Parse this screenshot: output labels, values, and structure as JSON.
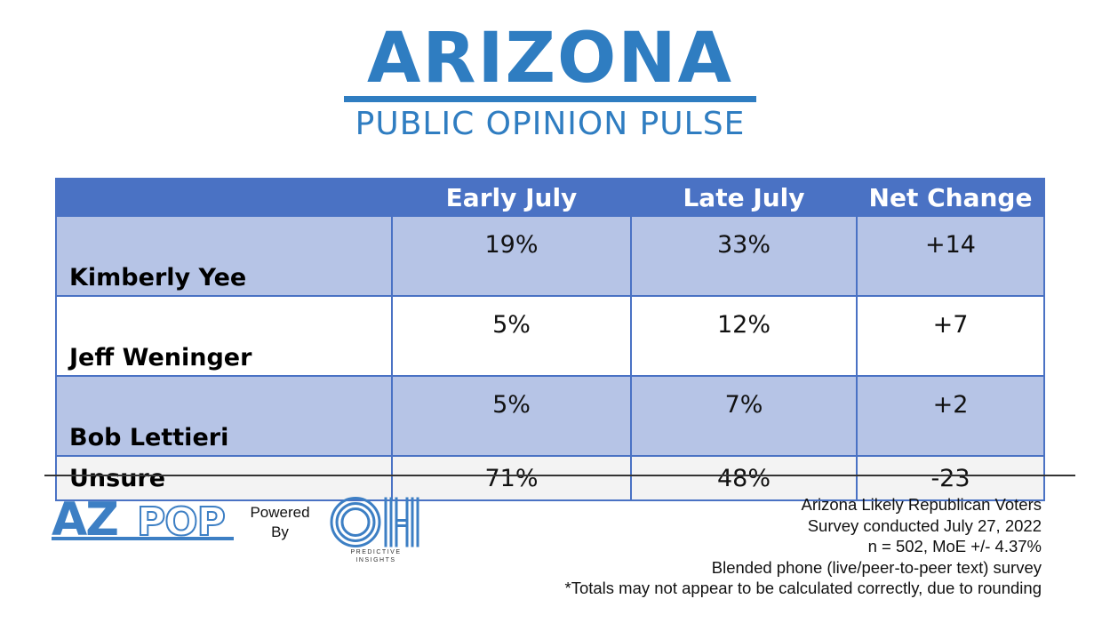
{
  "brand": {
    "title": "Arizona",
    "subtitle": "PUBLIC OPINION PULSE",
    "color": "#2f7dc1"
  },
  "chart_data": {
    "type": "table",
    "columns": [
      "",
      "Early July",
      "Late July",
      "Net Change"
    ],
    "rows": [
      {
        "name": "Kimberly Yee",
        "early": "19%",
        "late": "33%",
        "change": "+14"
      },
      {
        "name": "Jeff Weninger",
        "early": "5%",
        "late": "12%",
        "change": "+7"
      },
      {
        "name": "Bob Lettieri",
        "early": "5%",
        "late": "7%",
        "change": "+2"
      },
      {
        "name": "Unsure",
        "early": "71%",
        "late": "48%",
        "change": "-23"
      }
    ],
    "header_color": "#4a72c4",
    "band_color": "#b6c4e6"
  },
  "footer": {
    "logo_left": "AZPOP",
    "powered_by": [
      "Powered",
      "By"
    ],
    "logo_right": "OH",
    "logo_right_caption": [
      "PREDICTIVE",
      "INSIGHTS"
    ],
    "notes": [
      "Arizona Likely Republican Voters",
      "Survey conducted July 27, 2022",
      "n = 502, MoE +/- 4.37%",
      "Blended phone (live/peer-to-peer text) survey",
      "*Totals may not appear to be calculated correctly, due to rounding"
    ]
  }
}
